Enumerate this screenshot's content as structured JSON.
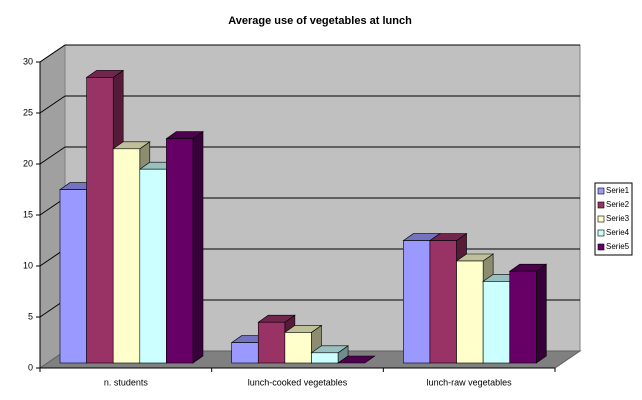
{
  "chart_data": {
    "type": "bar3d",
    "title": "Average use of vegetables at lunch",
    "categories": [
      "n. students",
      "lunch-cooked vegetables",
      "lunch-raw vegetables"
    ],
    "series": [
      {
        "name": "Serie1",
        "color": "#9999ff",
        "values": [
          17,
          2,
          12
        ]
      },
      {
        "name": "Serie2",
        "color": "#993366",
        "values": [
          28,
          4,
          12
        ]
      },
      {
        "name": "Serie3",
        "color": "#ffffcc",
        "values": [
          21,
          3,
          10
        ]
      },
      {
        "name": "Serie4",
        "color": "#ccffff",
        "values": [
          19,
          1,
          8
        ]
      },
      {
        "name": "Serie5",
        "color": "#660066",
        "values": [
          22,
          0,
          9
        ]
      }
    ],
    "ylim": [
      0,
      30
    ],
    "yticks": [
      0,
      5,
      10,
      15,
      20,
      25,
      30
    ],
    "grid": true,
    "legend": "right"
  }
}
